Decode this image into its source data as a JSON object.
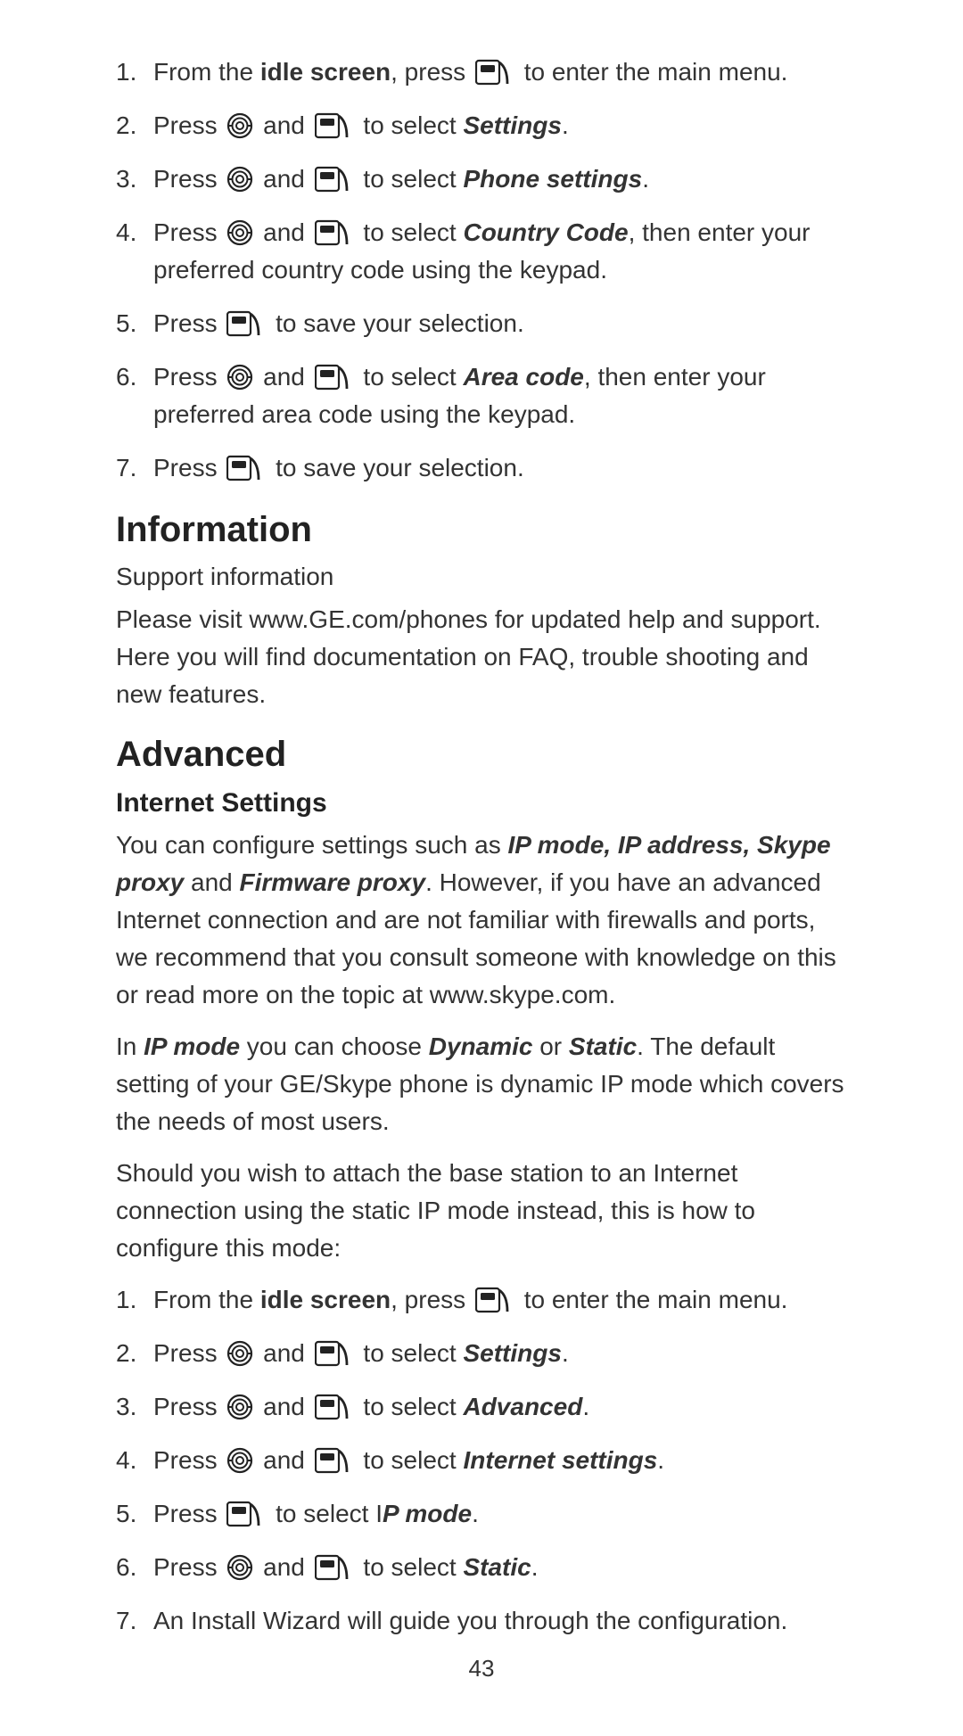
{
  "list1": {
    "items": [
      {
        "pre": "From the ",
        "b1": "idle screen",
        "mid": ", press ",
        "icons": [
          "flag"
        ],
        "post": " to enter the main menu.",
        "bi": ""
      },
      {
        "pre": "Press ",
        "b1": "",
        "mid": "",
        "icons": [
          "wheel",
          "flag"
        ],
        "post": " to select ",
        "bi": "Settings",
        "end": "."
      },
      {
        "pre": "Press ",
        "b1": "",
        "mid": "",
        "icons": [
          "wheel",
          "flag"
        ],
        "post": " to select ",
        "bi": "Phone settings",
        "end": "."
      },
      {
        "pre": "Press ",
        "b1": "",
        "mid": "",
        "icons": [
          "wheel",
          "flag"
        ],
        "post": " to select ",
        "bi": "Country Code",
        "end": ", then enter your preferred country code using the keypad."
      },
      {
        "pre": "Press ",
        "b1": "",
        "mid": "",
        "icons": [
          "flag"
        ],
        "post": " to save your selection.",
        "bi": "",
        "end": ""
      },
      {
        "pre": "Press ",
        "b1": "",
        "mid": "",
        "icons": [
          "wheel",
          "flag"
        ],
        "post": " to select ",
        "bi": "Area code",
        "end": ", then enter your preferred area code using the keypad."
      },
      {
        "pre": "Press ",
        "b1": "",
        "mid": "",
        "icons": [
          "flag"
        ],
        "post": " to save your selection.",
        "bi": "",
        "end": ""
      }
    ]
  },
  "info": {
    "heading": "Information",
    "subtitle": "Support information",
    "body": "Please visit www.GE.com/phones for updated help and support. Here you will find documentation on FAQ, trouble shooting and new features."
  },
  "adv": {
    "heading": "Advanced",
    "subheading": "Internet Settings",
    "p1": {
      "t1": "You can configure settings such as ",
      "b1": "IP mode, IP address, Skype proxy",
      "t2": " and ",
      "b2": "Firmware proxy",
      "t3": ". However, if you have an advanced Internet connection and are not familiar with firewalls and ports, we recommend that you consult someone with knowledge on this or read more on the topic at www.skype.com."
    },
    "p2": {
      "t1": "In ",
      "b1": "IP mode",
      "t2": " you can choose ",
      "b2": "Dynamic",
      "t3": " or ",
      "b3": "Static",
      "t4": ". The default setting of your GE/Skype phone is dynamic IP mode which covers the needs of most users."
    },
    "p3": "Should you wish to attach the base station to an Internet connection using the static IP mode instead, this is how to configure this mode:"
  },
  "list2": {
    "items": [
      {
        "pre": "From the ",
        "b1": "idle screen",
        "mid": ", press ",
        "icons": [
          "flag"
        ],
        "post": " to enter the main menu.",
        "bi": "",
        "end": ""
      },
      {
        "pre": "Press ",
        "b1": "",
        "mid": "",
        "icons": [
          "wheel",
          "flag"
        ],
        "post": " to select ",
        "bi": "Settings",
        "end": "."
      },
      {
        "pre": "Press ",
        "b1": "",
        "mid": "",
        "icons": [
          "wheel",
          "flag"
        ],
        "post": " to select ",
        "bi": "Advanced",
        "end": "."
      },
      {
        "pre": "Press ",
        "b1": "",
        "mid": "",
        "icons": [
          "wheel",
          "flag"
        ],
        "post": " to select ",
        "bi": "Internet settings",
        "end": "."
      },
      {
        "pre": "Press  ",
        "b1": "",
        "mid": "",
        "icons": [
          "flag"
        ],
        "post": "  to select I",
        "bi": "P mode",
        "end": "."
      },
      {
        "pre": "Press ",
        "b1": "",
        "mid": "",
        "icons": [
          "wheel",
          "flag"
        ],
        "post": " to select ",
        "bi": "Static",
        "end": "."
      },
      {
        "pre": "An Install Wizard will guide you through the configuration.",
        "b1": "",
        "mid": "",
        "icons": [],
        "post": "",
        "bi": "",
        "end": ""
      }
    ]
  },
  "page": "43",
  "text": {
    "and": " and "
  }
}
